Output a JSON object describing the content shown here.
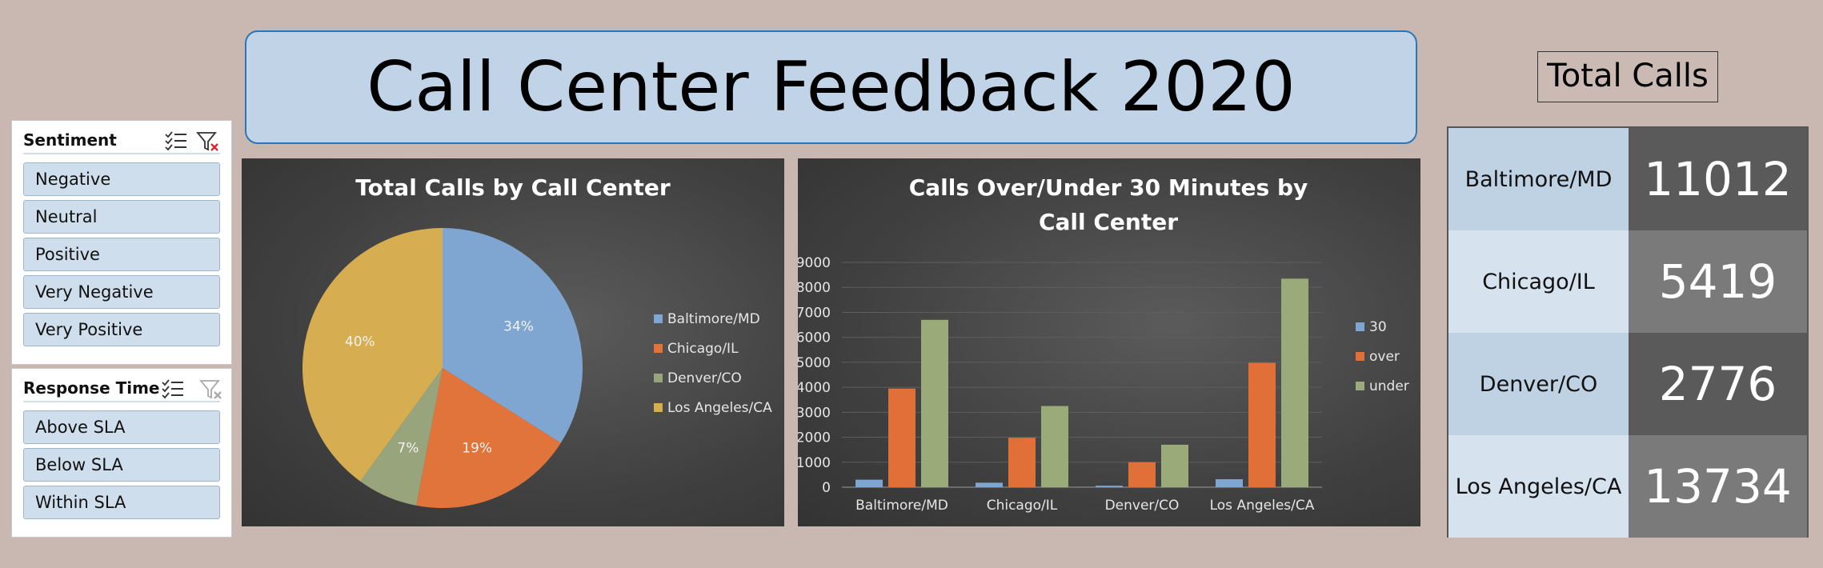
{
  "dashboard": {
    "title": "Call Center Feedback 2020"
  },
  "slicers": {
    "sentiment": {
      "title": "Sentiment",
      "icons": [
        "multi-select-icon",
        "clear-filter-icon"
      ],
      "items": [
        "Negative",
        "Neutral",
        "Positive",
        "Very Negative",
        "Very Positive"
      ]
    },
    "response_time": {
      "title": "Response Time",
      "icons": [
        "multi-select-icon",
        "clear-filter-icon"
      ],
      "items": [
        "Above SLA",
        "Below SLA",
        "Within SLA"
      ]
    }
  },
  "total_calls": {
    "title": "Total Calls",
    "rows": [
      {
        "city": "Baltimore/MD",
        "value": "11012"
      },
      {
        "city": "Chicago/IL",
        "value": "5419"
      },
      {
        "city": "Denver/CO",
        "value": "2776"
      },
      {
        "city": "Los Angeles/CA",
        "value": "13734"
      }
    ]
  },
  "colors": {
    "baltimore": "#7fa6d1",
    "chicago": "#e0743a",
    "denver": "#98a47c",
    "losangeles": "#d7ad52",
    "bar_30": "#7fa6d1",
    "bar_over": "#e07038",
    "bar_under": "#9aaa78"
  },
  "chart_data": [
    {
      "type": "pie",
      "title": "Total Calls by Call Center",
      "categories": [
        "Baltimore/MD",
        "Chicago/IL",
        "Denver/CO",
        "Los Angeles/CA"
      ],
      "values": [
        34,
        19,
        7,
        40
      ],
      "labels": [
        "34%",
        "19%",
        "7%",
        "40%"
      ],
      "legend": "right"
    },
    {
      "type": "bar",
      "title": "Calls Over/Under 30 Minutes by Call Center",
      "title_lines": [
        "Calls Over/Under 30 Minutes by",
        "Call Center"
      ],
      "categories": [
        "Baltimore/MD",
        "Chicago/IL",
        "Denver/CO",
        "Los Angeles/CA"
      ],
      "series": [
        {
          "name": "30",
          "values": [
            300,
            180,
            60,
            320
          ]
        },
        {
          "name": "over",
          "values": [
            3950,
            1980,
            1000,
            4980
          ]
        },
        {
          "name": "under",
          "values": [
            6700,
            3250,
            1700,
            8350
          ]
        }
      ],
      "ylim": [
        0,
        9000
      ],
      "yticks": [
        "0",
        "1000",
        "2000",
        "3000",
        "4000",
        "5000",
        "6000",
        "7000",
        "8000",
        "9000"
      ],
      "grid": true,
      "legend": "right"
    }
  ]
}
